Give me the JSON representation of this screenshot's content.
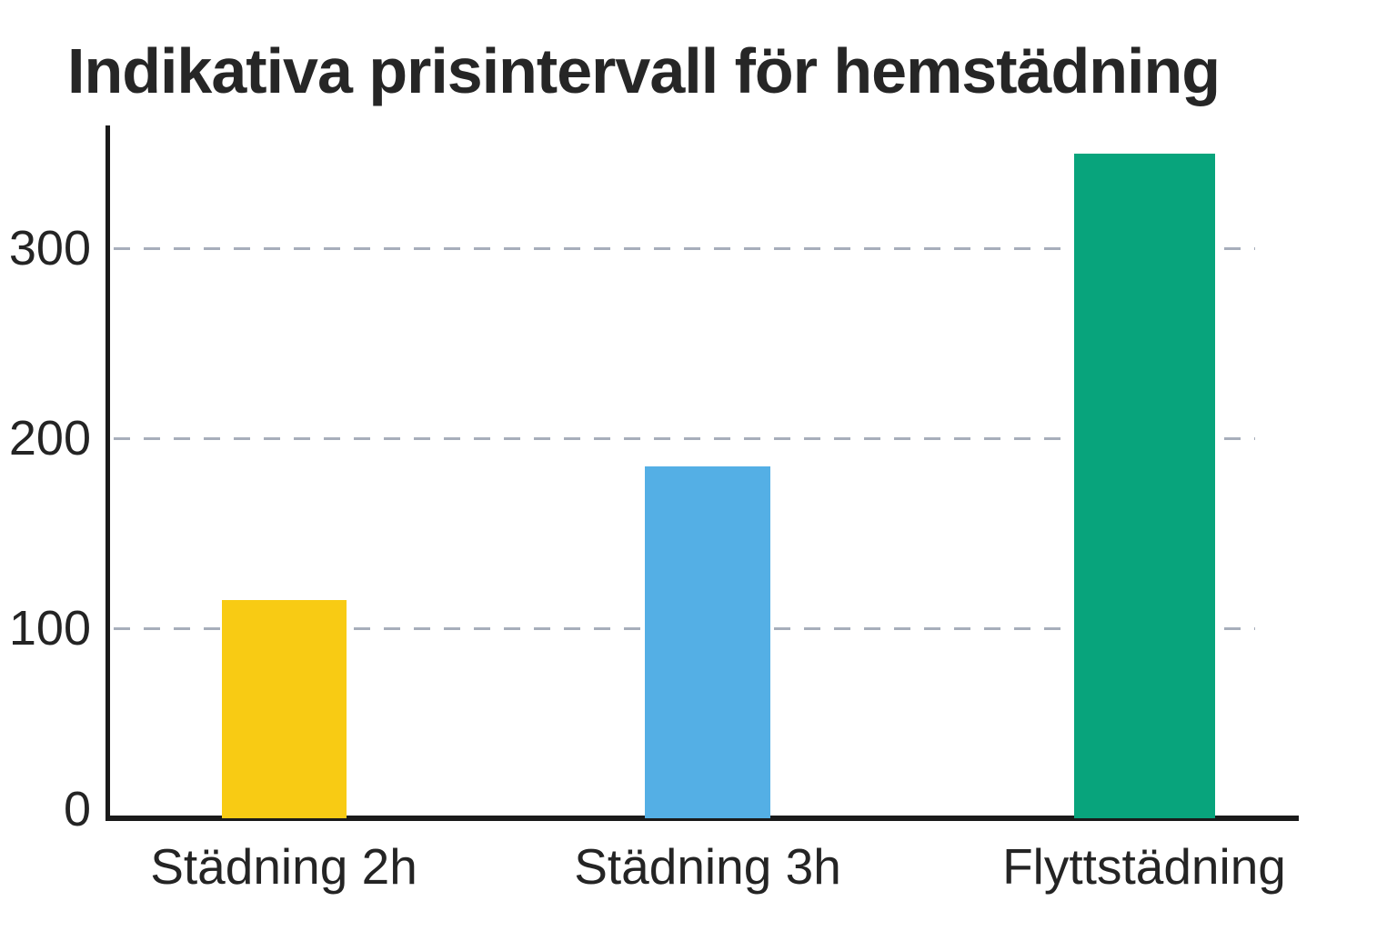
{
  "chart_data": {
    "type": "bar",
    "title": "Indikativa prisintervall för hemstädning",
    "categories": [
      "Städning 2h",
      "Städning 3h",
      "Flyttstädning"
    ],
    "values": [
      115,
      185,
      350
    ],
    "bar_colors": [
      "#f8cb14",
      "#54afe5",
      "#08a47c"
    ],
    "yticks": [
      0,
      100,
      200,
      300
    ],
    "ylim": [
      0,
      363
    ],
    "xlabel": "",
    "ylabel": "",
    "grid": "horizontal dashed gridlines at 100, 200, 300",
    "legend_position": "none",
    "colors": {
      "text": "#242424",
      "axis": "#1a1a1a",
      "gridline": "#a7aebb",
      "background": "#ffffff"
    }
  }
}
